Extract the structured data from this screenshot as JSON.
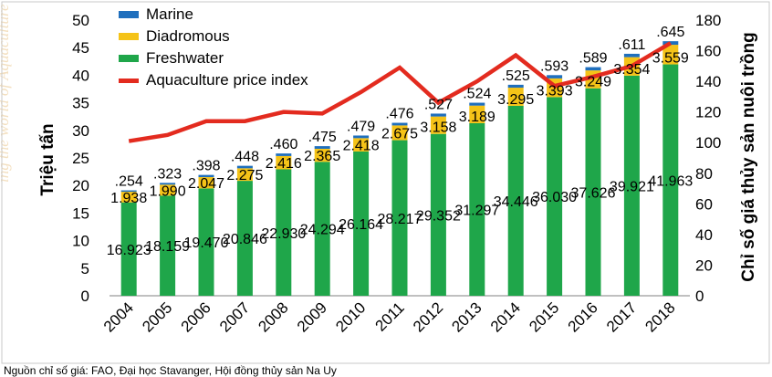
{
  "chart_data": {
    "type": "bar",
    "stacked": true,
    "categories": [
      "2004",
      "2005",
      "2006",
      "2007",
      "2008",
      "2009",
      "2010",
      "2011",
      "2012",
      "2013",
      "2014",
      "2015",
      "2016",
      "2017",
      "2018"
    ],
    "series": [
      {
        "name": "Freshwater",
        "color": "#1fa64a",
        "values": [
          16.923,
          18.159,
          19.47,
          20.846,
          22.93,
          24.294,
          26.164,
          28.217,
          29.352,
          31.297,
          34.446,
          36.03,
          37.626,
          39.921,
          41.963
        ],
        "labels": [
          "16.923",
          "18.159",
          "19.470",
          "20.846",
          "22.930",
          "24.294",
          "26.164",
          "28.217",
          "29.352",
          "31.297",
          "34.446",
          "36.030",
          "37.626",
          "39.921",
          "41.963"
        ]
      },
      {
        "name": "Diadromous",
        "color": "#f5c318",
        "values": [
          1.938,
          1.99,
          2.047,
          2.275,
          2.416,
          2.365,
          2.418,
          2.675,
          3.158,
          3.189,
          3.295,
          3.393,
          3.249,
          3.354,
          3.559
        ],
        "labels": [
          "1.938",
          "1.990",
          "2.047",
          "2.275",
          "2.416",
          "2.365",
          "2.418",
          "2.675",
          "3.158",
          "3.189",
          "3.295",
          "3.393",
          "3.249",
          "3.354",
          "3.559"
        ]
      },
      {
        "name": "Marine",
        "color": "#1f6fbd",
        "values": [
          0.254,
          0.323,
          0.398,
          0.448,
          0.46,
          0.475,
          0.479,
          0.476,
          0.527,
          0.524,
          0.525,
          0.593,
          0.589,
          0.611,
          0.645
        ],
        "labels": [
          ".254",
          ".323",
          ".398",
          ".448",
          ".460",
          ".475",
          ".479",
          ".476",
          ".527",
          ".524",
          ".525",
          ".593",
          ".589",
          ".611",
          ".645"
        ]
      }
    ],
    "line_series": {
      "name": "Aquaculture price index",
      "color": "#e32b1f",
      "axis": "right",
      "values": [
        101,
        105,
        114,
        114,
        120,
        119,
        133,
        149,
        126,
        140,
        157,
        137,
        143,
        150,
        165
      ]
    },
    "ylabel": "Triệu tấn",
    "y2label": "Chỉ số giá thủy sản nuôi trồng",
    "ylim": [
      0,
      50
    ],
    "yticks": [
      "0",
      "5",
      "10",
      "15",
      "20",
      "25",
      "30",
      "35",
      "40",
      "45",
      "50"
    ],
    "y2lim": [
      0,
      180
    ],
    "y2ticks": [
      "0",
      "20",
      "40",
      "60",
      "80",
      "100",
      "120",
      "140",
      "160",
      "180"
    ],
    "legend_position": "top-left",
    "grid": false
  },
  "watermark_text": "ing the world of Aquaculture and Fisheries",
  "source_text": "Nguồn chỉ số giá: FAO, Đại học Stavanger, Hội đồng thủy sản Na Uy"
}
